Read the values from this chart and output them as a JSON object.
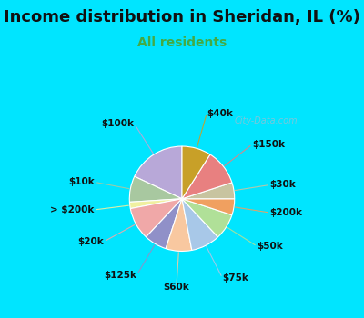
{
  "title": "Income distribution in Sheridan, IL (%)",
  "subtitle": "All residents",
  "bg_outer": "#00e5ff",
  "bg_chart": "#d8f0e8",
  "labels": [
    "$100k",
    "$10k",
    "> $200k",
    "$20k",
    "$125k",
    "$60k",
    "$75k",
    "$50k",
    "$200k",
    "$30k",
    "$150k",
    "$40k"
  ],
  "values": [
    18,
    8,
    2,
    10,
    7,
    8,
    9,
    8,
    5,
    5,
    11,
    9
  ],
  "colors": [
    "#b8a8d8",
    "#a8c8a0",
    "#f0f0a0",
    "#f0a8a8",
    "#9090c8",
    "#f8c8a0",
    "#a8c8e8",
    "#b0e098",
    "#f0a060",
    "#c8c4a0",
    "#e88080",
    "#c8a028"
  ],
  "startangle": 90,
  "title_fontsize": 13,
  "subtitle_fontsize": 10,
  "subtitle_color": "#44aa44",
  "watermark": "City-Data.com",
  "watermark_color": "#aabbcc",
  "label_fontsize": 7.5
}
